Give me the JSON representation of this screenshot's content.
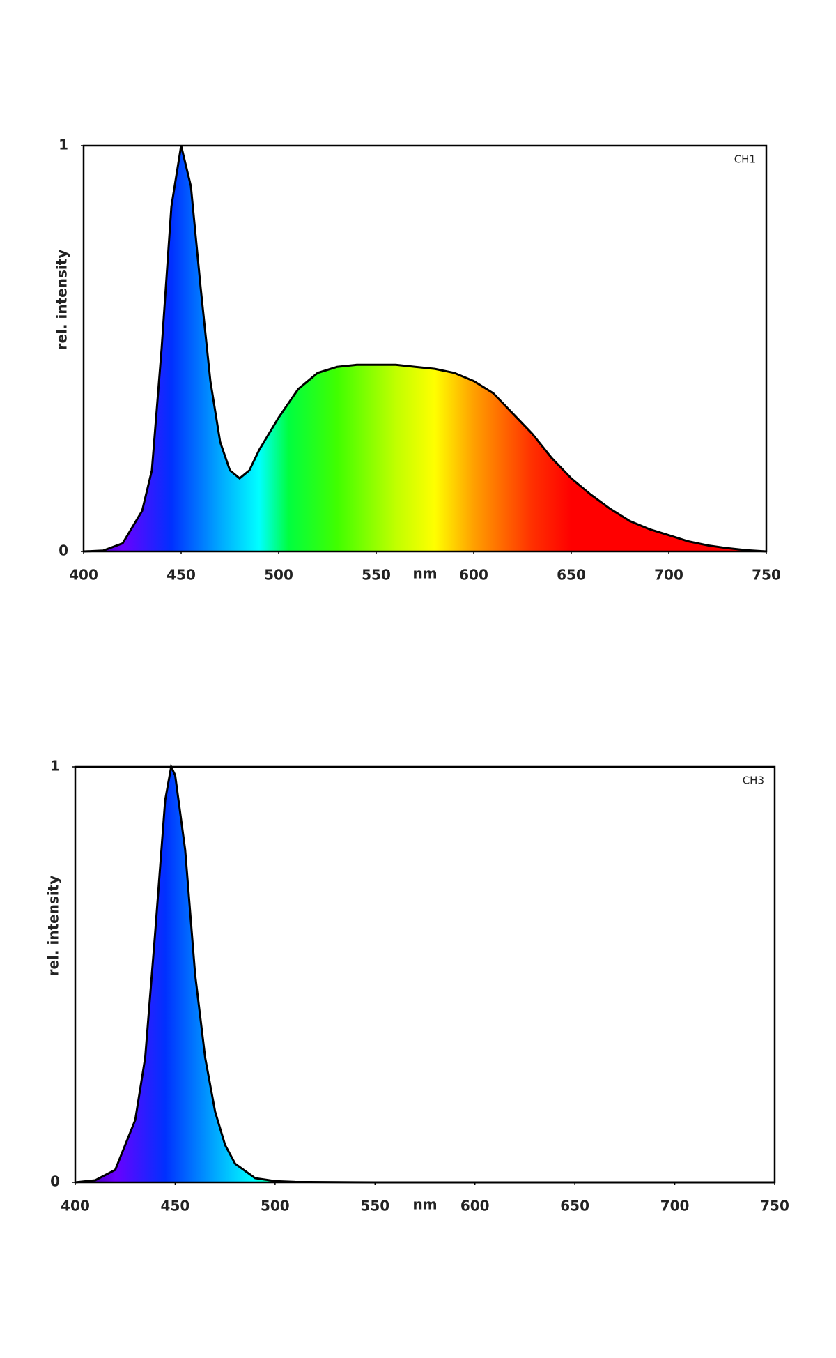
{
  "chart_data": [
    {
      "type": "area",
      "label": "CH1",
      "ylabel": "rel. intensity",
      "xlabel": "nm",
      "x": [
        400,
        410,
        420,
        430,
        435,
        440,
        445,
        450,
        455,
        460,
        465,
        470,
        475,
        480,
        485,
        490,
        500,
        510,
        520,
        530,
        540,
        550,
        560,
        570,
        580,
        590,
        600,
        610,
        620,
        630,
        640,
        650,
        660,
        670,
        680,
        690,
        700,
        710,
        720,
        730,
        740,
        750
      ],
      "values": [
        0,
        0.002,
        0.02,
        0.1,
        0.2,
        0.5,
        0.85,
        1,
        0.9,
        0.65,
        0.42,
        0.27,
        0.2,
        0.18,
        0.2,
        0.25,
        0.33,
        0.4,
        0.44,
        0.455,
        0.46,
        0.46,
        0.46,
        0.455,
        0.45,
        0.44,
        0.42,
        0.39,
        0.34,
        0.29,
        0.23,
        0.18,
        0.14,
        0.105,
        0.075,
        0.055,
        0.04,
        0.025,
        0.015,
        0.008,
        0.003,
        0
      ],
      "xlim": [
        400,
        750
      ],
      "ylim": [
        0,
        1
      ],
      "xticks": [
        400,
        450,
        500,
        550,
        600,
        650,
        700,
        750
      ],
      "yticks": [
        0,
        1
      ]
    },
    {
      "type": "area",
      "label": "CH3",
      "ylabel": "rel. intensity",
      "xlabel": "nm",
      "x": [
        400,
        410,
        420,
        430,
        435,
        440,
        445,
        448,
        450,
        455,
        460,
        465,
        470,
        475,
        480,
        490,
        500,
        510,
        550,
        750
      ],
      "values": [
        0,
        0.005,
        0.03,
        0.15,
        0.3,
        0.6,
        0.92,
        1,
        0.98,
        0.8,
        0.5,
        0.3,
        0.17,
        0.09,
        0.045,
        0.01,
        0.003,
        0.001,
        0,
        0
      ],
      "xlim": [
        400,
        750
      ],
      "ylim": [
        0,
        1
      ],
      "xticks": [
        400,
        450,
        500,
        550,
        600,
        650,
        700,
        750
      ],
      "yticks": [
        0,
        1
      ]
    }
  ]
}
